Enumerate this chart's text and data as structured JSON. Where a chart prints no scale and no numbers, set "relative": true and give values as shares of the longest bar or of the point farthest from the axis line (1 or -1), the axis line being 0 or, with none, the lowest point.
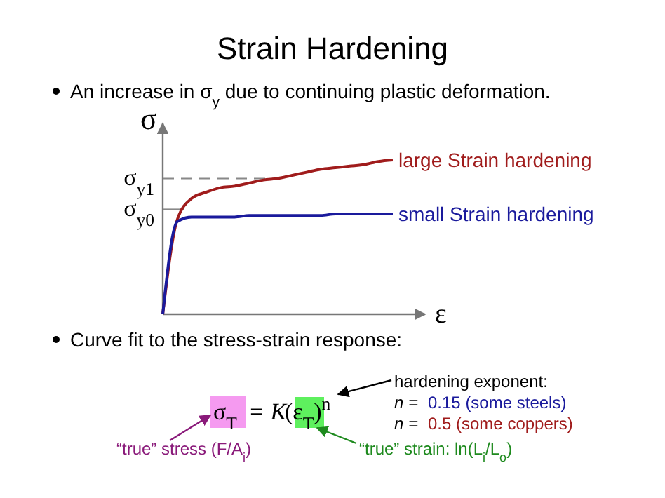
{
  "chart_data": {
    "type": "line",
    "title": "Strain Hardening",
    "xlabel": "ε",
    "ylabel": "σ",
    "relative": true,
    "categories": [
      null,
      null,
      null,
      null,
      null,
      null,
      null,
      null,
      null,
      null,
      null,
      null,
      null,
      null,
      null,
      null,
      null
    ],
    "series": [
      {
        "name": "large Strain hardening",
        "color": "#a01c1c",
        "values": [
          0,
          0.61,
          0.75,
          0.79,
          0.82,
          0.83,
          0.85,
          0.87,
          0.88,
          0.9,
          0.92,
          0.94,
          0.95,
          0.96,
          0.97,
          0.99,
          1
        ]
      },
      {
        "name": "small Strain hardening",
        "color": "#1a1a9c",
        "values": [
          0,
          0.6,
          0.63,
          0.63,
          0.63,
          0.63,
          0.64,
          0.64,
          0.64,
          0.64,
          0.64,
          0.64,
          0.65,
          0.65,
          0.65,
          0.65,
          0.65
        ]
      }
    ],
    "ref_lines": [
      {
        "axis": "y",
        "value": 0.88,
        "label": "σ$_{y1}$",
        "line_style": "dashed",
        "color": "#888888"
      },
      {
        "axis": "y",
        "value": 0.68,
        "label": "σ$_{y0}$",
        "line_style": "solid",
        "color": "#888888"
      }
    ],
    "annotations": [
      "An increase in σ$_{y}$ due to continuing plastic deformation.",
      "Curve fit to the stress-strain response:",
      "σ$_{T}$",
      "= K",
      "(ε$_{T}$)$^{n}$",
      "hardening exponent:",
      "n =",
      "0.15 (some steels)",
      "n =",
      "0.5 (some coppers)",
      "“true” stress (F/A$_{i}$)",
      "“true” strain:  ln(L$_{i}$/L$_{o}$)"
    ]
  }
}
